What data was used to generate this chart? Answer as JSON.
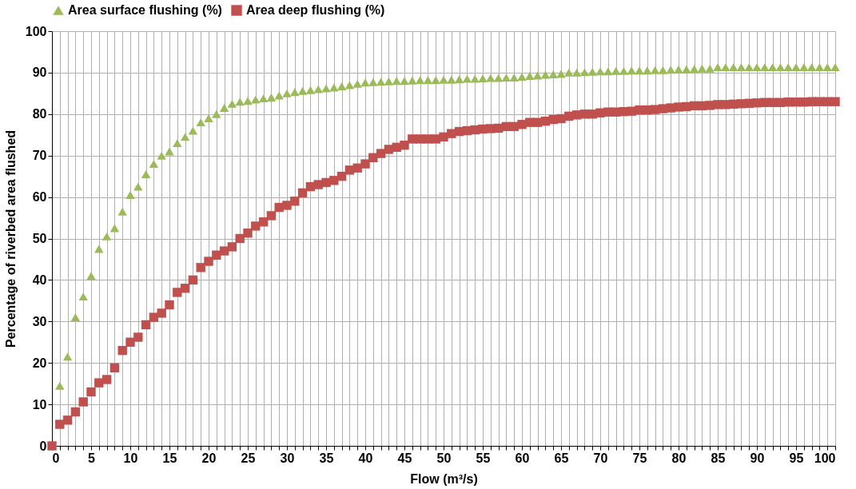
{
  "chart_data": {
    "type": "scatter",
    "xlabel": "Flow (m³/s)",
    "ylabel": "Percentage of riverbed area flushed",
    "x": [
      0,
      1,
      2,
      3,
      4,
      5,
      6,
      7,
      8,
      9,
      10,
      11,
      12,
      13,
      14,
      15,
      16,
      17,
      18,
      19,
      20,
      21,
      22,
      23,
      24,
      25,
      26,
      27,
      28,
      29,
      30,
      31,
      32,
      33,
      34,
      35,
      36,
      37,
      38,
      39,
      40,
      41,
      42,
      43,
      44,
      45,
      46,
      47,
      48,
      49,
      50,
      51,
      52,
      53,
      54,
      55,
      56,
      57,
      58,
      59,
      60,
      61,
      62,
      63,
      64,
      65,
      66,
      67,
      68,
      69,
      70,
      71,
      72,
      73,
      74,
      75,
      76,
      77,
      78,
      79,
      80,
      81,
      82,
      83,
      84,
      85,
      86,
      87,
      88,
      89,
      90,
      91,
      92,
      93,
      94,
      95,
      96,
      97,
      98,
      99,
      100
    ],
    "series": [
      {
        "name": "Area surface flushing (%)",
        "color": "#9bbb59",
        "marker": "triangle",
        "values": [
          null,
          14.5,
          21.5,
          31,
          36,
          41,
          47.5,
          50.5,
          52.5,
          56.5,
          60.5,
          62.5,
          65.5,
          68,
          70,
          71,
          73,
          74.5,
          76,
          78,
          79,
          80,
          81.5,
          82.5,
          83,
          83.2,
          83.5,
          83.8,
          84,
          84.5,
          85,
          85.3,
          85.6,
          85.8,
          86,
          86.2,
          86.4,
          86.7,
          87,
          87.3,
          87.6,
          87.7,
          87.8,
          87.9,
          88,
          88,
          88.1,
          88.2,
          88.2,
          88.2,
          88.3,
          88.3,
          88.4,
          88.5,
          88.5,
          88.6,
          88.7,
          88.7,
          88.8,
          88.8,
          89,
          89.2,
          89.3,
          89.5,
          89.6,
          89.7,
          90,
          90,
          90.1,
          90.2,
          90.3,
          90.3,
          90.4,
          90.4,
          90.5,
          90.5,
          90.5,
          90.6,
          90.6,
          90.7,
          90.8,
          90.8,
          90.9,
          91,
          91,
          91.3,
          91.3,
          91.3,
          91.3,
          91.3,
          91.3,
          91.3,
          91.3,
          91.3,
          91.3,
          91.3,
          91.3,
          91.3,
          91.3,
          91.3,
          91.3
        ]
      },
      {
        "name": "Area deep flushing (%)",
        "color": "#c0504d",
        "marker": "square",
        "values": [
          0,
          5.2,
          6.2,
          8.2,
          10.6,
          13,
          15.2,
          16,
          18.8,
          23,
          25,
          26.2,
          29.2,
          31,
          32,
          34,
          37,
          38,
          40,
          43,
          44.5,
          46,
          47,
          48,
          50,
          51.3,
          53,
          54,
          55.5,
          57.5,
          58,
          59,
          61,
          62.5,
          63,
          63.5,
          64,
          65,
          66.5,
          67,
          68,
          69.5,
          70.5,
          71.5,
          72,
          72.5,
          74,
          74,
          74,
          74,
          74.5,
          75.3,
          75.8,
          76,
          76.2,
          76.4,
          76.5,
          76.6,
          77,
          77,
          77.5,
          78,
          78,
          78.3,
          78.7,
          78.9,
          79.5,
          79.8,
          80,
          80,
          80.3,
          80.5,
          80.5,
          80.6,
          80.7,
          81,
          81,
          81.1,
          81.3,
          81.5,
          81.7,
          81.8,
          82,
          82,
          82.1,
          82.3,
          82.3,
          82.4,
          82.5,
          82.6,
          82.7,
          82.8,
          82.8,
          82.8,
          82.9,
          82.9,
          82.9,
          83,
          83,
          83,
          83
        ]
      }
    ],
    "xlim": [
      0,
      100
    ],
    "xticks": [
      0,
      {
        "value": 1,
        "label": null
      },
      {
        "value": 2,
        "label": null
      },
      {
        "value": 3,
        "label": null
      },
      {
        "value": 4,
        "label": null
      },
      5,
      {
        "value": 6,
        "label": null
      },
      {
        "value": 7,
        "label": null
      },
      {
        "value": 8,
        "label": null
      },
      {
        "value": 9,
        "label": null
      },
      10,
      {
        "value": 11,
        "label": null
      },
      {
        "value": 12,
        "label": null
      },
      {
        "value": 13,
        "label": null
      },
      {
        "value": 14,
        "label": null
      },
      15,
      {
        "value": 16,
        "label": null
      },
      {
        "value": 17,
        "label": null
      },
      {
        "value": 18,
        "label": null
      },
      {
        "value": 19,
        "label": null
      },
      20,
      {
        "value": 21,
        "label": null
      },
      {
        "value": 22,
        "label": null
      },
      {
        "value": 23,
        "label": null
      },
      {
        "value": 24,
        "label": null
      },
      25,
      {
        "value": 26,
        "label": null
      },
      {
        "value": 27,
        "label": null
      },
      {
        "value": 28,
        "label": null
      },
      {
        "value": 29,
        "label": null
      },
      30,
      {
        "value": 31,
        "label": null
      },
      {
        "value": 32,
        "label": null
      },
      {
        "value": 33,
        "label": null
      },
      {
        "value": 34,
        "label": null
      },
      35,
      {
        "value": 36,
        "label": null
      },
      {
        "value": 37,
        "label": null
      },
      {
        "value": 38,
        "label": null
      },
      {
        "value": 39,
        "label": null
      },
      40,
      {
        "value": 41,
        "label": null
      },
      {
        "value": 42,
        "label": null
      },
      {
        "value": 43,
        "label": null
      },
      {
        "value": 44,
        "label": null
      },
      45,
      {
        "value": 46,
        "label": null
      },
      {
        "value": 47,
        "label": null
      },
      {
        "value": 48,
        "label": null
      },
      {
        "value": 49,
        "label": null
      },
      50,
      {
        "value": 51,
        "label": null
      },
      {
        "value": 52,
        "label": null
      },
      {
        "value": 53,
        "label": null
      },
      {
        "value": 54,
        "label": null
      },
      55,
      {
        "value": 56,
        "label": null
      },
      {
        "value": 57,
        "label": null
      },
      {
        "value": 58,
        "label": null
      },
      {
        "value": 59,
        "label": null
      },
      60,
      {
        "value": 61,
        "label": null
      },
      {
        "value": 62,
        "label": null
      },
      {
        "value": 63,
        "label": null
      },
      {
        "value": 64,
        "label": null
      },
      65,
      {
        "value": 66,
        "label": null
      },
      {
        "value": 67,
        "label": null
      },
      {
        "value": 68,
        "label": null
      },
      {
        "value": 69,
        "label": null
      },
      70,
      {
        "value": 71,
        "label": null
      },
      {
        "value": 72,
        "label": null
      },
      {
        "value": 73,
        "label": null
      },
      {
        "value": 74,
        "label": null
      },
      75,
      {
        "value": 76,
        "label": null
      },
      {
        "value": 77,
        "label": null
      },
      {
        "value": 78,
        "label": null
      },
      {
        "value": 79,
        "label": null
      },
      80,
      {
        "value": 81,
        "label": null
      },
      {
        "value": 82,
        "label": null
      },
      {
        "value": 83,
        "label": null
      },
      {
        "value": 84,
        "label": null
      },
      85,
      {
        "value": 86,
        "label": null
      },
      {
        "value": 87,
        "label": null
      },
      {
        "value": 88,
        "label": null
      },
      {
        "value": 89,
        "label": null
      },
      90,
      {
        "value": 91,
        "label": null
      },
      {
        "value": 92,
        "label": null
      },
      {
        "value": 93,
        "label": null
      },
      {
        "value": 94,
        "label": null
      },
      95,
      {
        "value": 96,
        "label": null
      },
      {
        "value": 97,
        "label": null
      },
      {
        "value": 98,
        "label": null
      },
      {
        "value": 99,
        "label": null
      },
      100
    ],
    "ylim": [
      0,
      100
    ],
    "yticks": [
      0,
      10,
      20,
      30,
      40,
      50,
      60,
      70,
      80,
      90,
      100
    ],
    "grid": true,
    "legend": "top"
  }
}
